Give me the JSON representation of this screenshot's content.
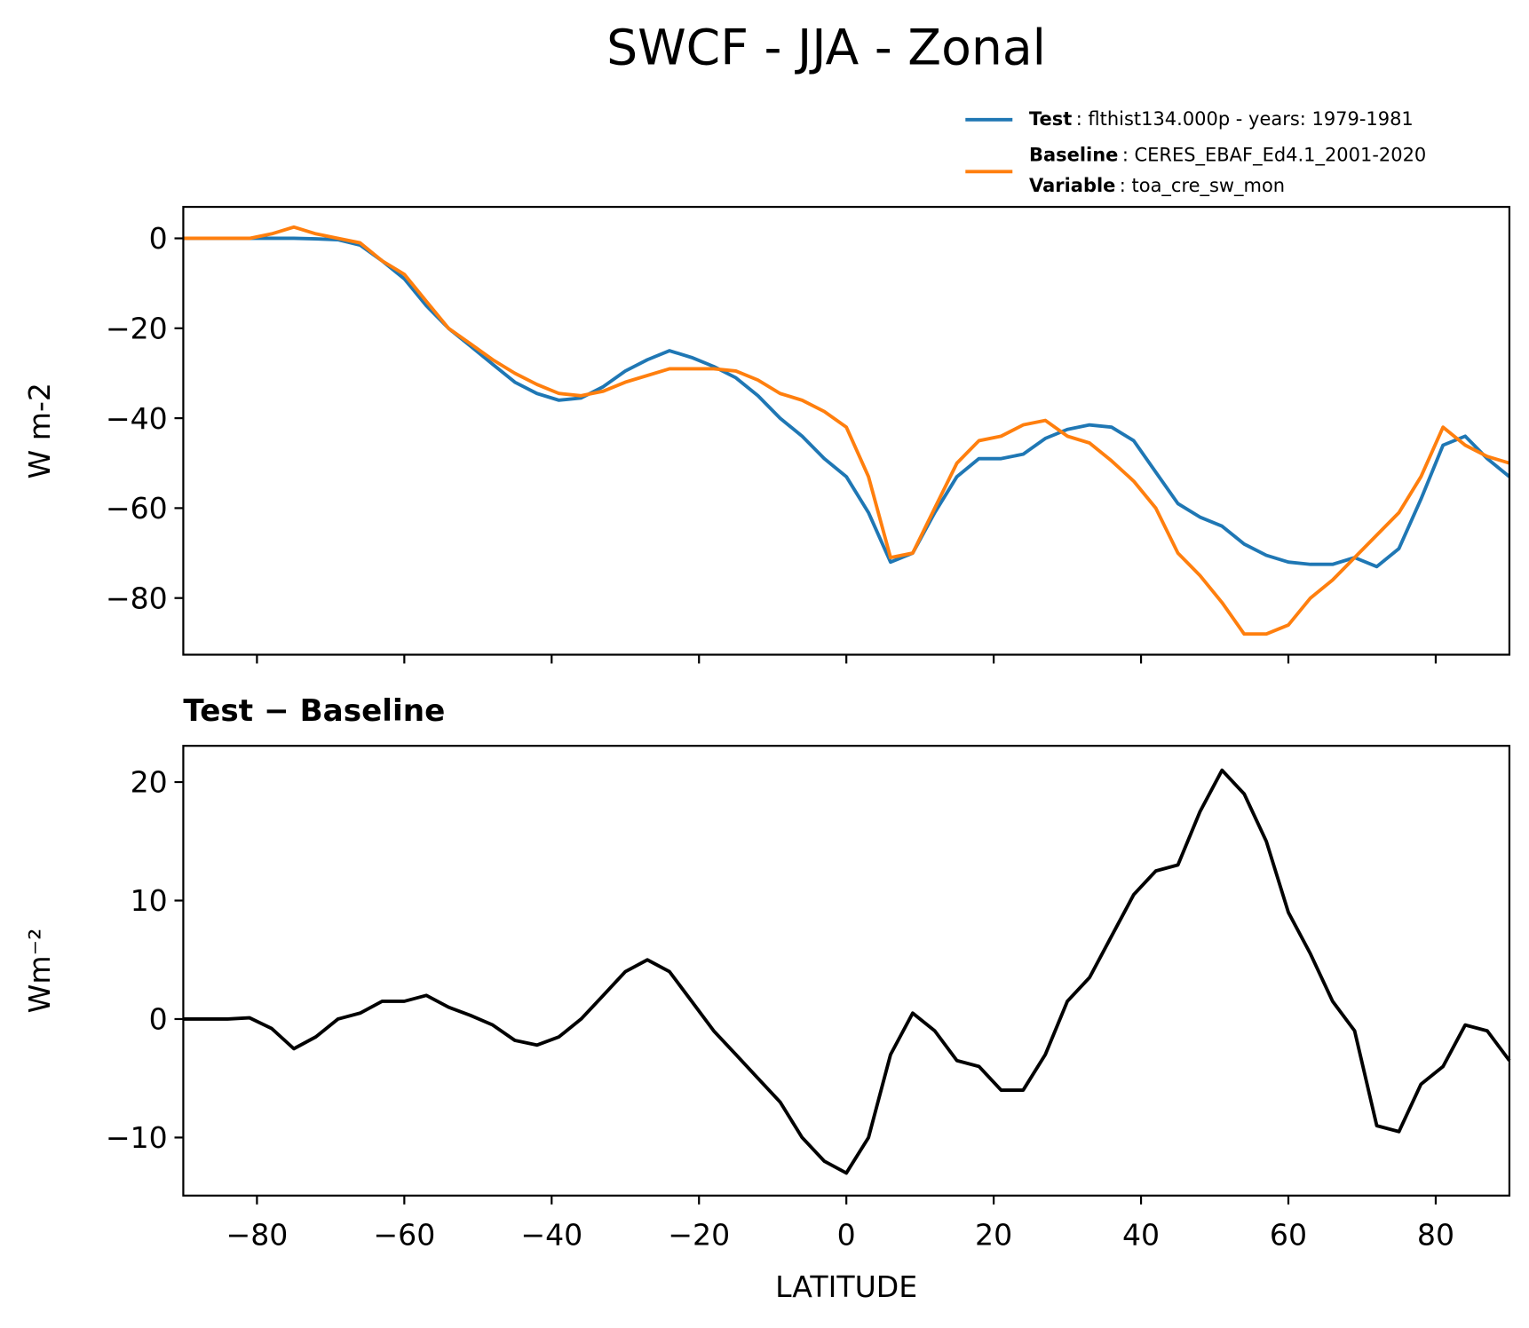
{
  "title": "SWCF - JJA - Zonal",
  "chart_data": [
    {
      "type": "line",
      "ylabel": "W m-2",
      "x": [
        -90,
        -87,
        -84,
        -81,
        -78,
        -75,
        -72,
        -69,
        -66,
        -63,
        -60,
        -57,
        -54,
        -51,
        -48,
        -45,
        -42,
        -39,
        -36,
        -33,
        -30,
        -27,
        -24,
        -21,
        -18,
        -15,
        -12,
        -9,
        -6,
        -3,
        0,
        3,
        6,
        9,
        12,
        15,
        18,
        21,
        24,
        27,
        30,
        33,
        36,
        39,
        42,
        45,
        48,
        51,
        54,
        57,
        60,
        63,
        66,
        69,
        72,
        75,
        78,
        81,
        84,
        87,
        90
      ],
      "series": [
        {
          "name": "Test",
          "detail": ": flthist134.000p - years: 1979-1981",
          "color": "#1f77b4",
          "values": [
            0,
            0,
            0,
            0,
            0,
            0,
            -0.1,
            -0.3,
            -1.5,
            -5,
            -9,
            -15,
            -20,
            -24,
            -28,
            -32,
            -34.5,
            -36,
            -35.5,
            -33,
            -29.5,
            -27,
            -25,
            -26.5,
            -28.5,
            -31,
            -35,
            -40,
            -44,
            -49,
            -53,
            -61,
            -72,
            -70,
            -61,
            -53,
            -49,
            -49,
            -48,
            -44.5,
            -42.5,
            -41.5,
            -42,
            -45,
            -52,
            -59,
            -62,
            -64,
            -68,
            -70.5,
            -72,
            -72.5,
            -72.5,
            -71,
            -73,
            -69,
            -58,
            -46,
            -44,
            -49,
            -53
          ]
        },
        {
          "name": "Baseline",
          "detail": ": CERES_EBAF_Ed4.1_2001-2020",
          "color": "#ff7f0e",
          "values": [
            0,
            0,
            0,
            0,
            1,
            2.5,
            1,
            0,
            -1,
            -5,
            -8,
            -14,
            -20,
            -23.5,
            -27,
            -30,
            -32.5,
            -34.5,
            -35,
            -34,
            -32,
            -30.5,
            -29,
            -29,
            -29,
            -29.5,
            -31.5,
            -34.5,
            -36,
            -38.5,
            -42,
            -53,
            -71,
            -70,
            -60,
            -50,
            -45,
            -44,
            -41.5,
            -40.5,
            -44,
            -45.5,
            -49.5,
            -54,
            -60,
            -70,
            -75,
            -81,
            -88,
            -88,
            -86,
            -80,
            -76,
            -71,
            -66,
            -61,
            -53,
            -42,
            -46,
            -48.5,
            -50
          ]
        }
      ],
      "legend_note": {
        "label": "Variable",
        "detail": ": toa_cre_sw_mon"
      },
      "xlim": [
        -90,
        90
      ],
      "ylim": [
        -92.6,
        7
      ],
      "xticks": [
        -80,
        -60,
        -40,
        -20,
        0,
        20,
        40,
        60,
        80
      ],
      "yticks": [
        0,
        {
          "value": -20,
          "label": "−20"
        },
        {
          "value": -40,
          "label": "−40"
        },
        {
          "value": -60,
          "label": "−60"
        },
        {
          "value": -80,
          "label": "−80"
        }
      ]
    },
    {
      "type": "line",
      "title": "Test − Baseline",
      "ylabel": "Wm⁻²",
      "xlabel": "LATITUDE",
      "x": [
        -90,
        -87,
        -84,
        -81,
        -78,
        -75,
        -72,
        -69,
        -66,
        -63,
        -60,
        -57,
        -54,
        -51,
        -48,
        -45,
        -42,
        -39,
        -36,
        -33,
        -30,
        -27,
        -24,
        -21,
        -18,
        -15,
        -12,
        -9,
        -6,
        -3,
        0,
        3,
        6,
        9,
        12,
        15,
        18,
        21,
        24,
        27,
        30,
        33,
        36,
        39,
        42,
        45,
        48,
        51,
        54,
        57,
        60,
        63,
        66,
        69,
        72,
        75,
        78,
        81,
        84,
        87,
        90
      ],
      "series": [
        {
          "color": "#000000",
          "values": [
            0,
            0,
            0,
            0.1,
            -0.8,
            -2.5,
            -1.5,
            0,
            0.5,
            1.5,
            1.5,
            2,
            1,
            0.3,
            -0.5,
            -1.8,
            -2.2,
            -1.5,
            0,
            2,
            4,
            5,
            4,
            1.5,
            -1,
            -3,
            -5,
            -7,
            -10,
            -12,
            -13,
            -10,
            -3,
            0.5,
            -1,
            -3.5,
            -4,
            -6,
            -6,
            -3,
            1.5,
            3.5,
            7,
            10.5,
            12.5,
            13,
            17.5,
            21,
            19,
            15,
            9,
            5.5,
            1.5,
            -1,
            -9,
            -9.5,
            -5.5,
            -4,
            -0.5,
            -1,
            -3.5
          ]
        }
      ],
      "xlim": [
        -90,
        90
      ],
      "ylim": [
        -14.9,
        23.06
      ],
      "xticks": [
        {
          "value": -80,
          "label": "−80"
        },
        {
          "value": -60,
          "label": "−60"
        },
        {
          "value": -40,
          "label": "−40"
        },
        {
          "value": -20,
          "label": "−20"
        },
        0,
        20,
        40,
        60,
        80
      ],
      "yticks": [
        {
          "value": -10,
          "label": "−10"
        },
        0,
        10,
        20
      ]
    }
  ]
}
